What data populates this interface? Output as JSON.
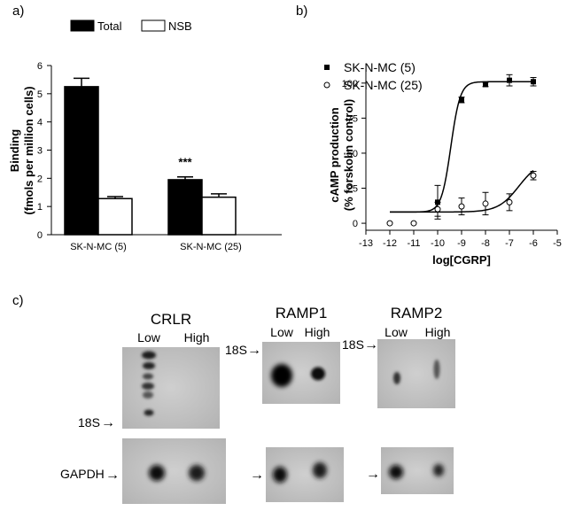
{
  "panel_labels": {
    "a": "a)",
    "b": "b)",
    "c": "c)"
  },
  "chart_data": [
    {
      "type": "bar",
      "panel": "a",
      "categories": [
        "SK-N-MC (5)",
        "SK-N-MC (25)"
      ],
      "series": [
        {
          "name": "Total",
          "values": [
            5.25,
            1.95
          ],
          "errors": [
            0.3,
            0.1
          ],
          "color": "#000000"
        },
        {
          "name": "NSB",
          "values": [
            1.28,
            1.33
          ],
          "errors": [
            0.07,
            0.12
          ],
          "color": "#ffffff"
        }
      ],
      "ylabel_line1": "Binding",
      "ylabel_line2": "(fmols per million cells)",
      "ylim": [
        0,
        6
      ],
      "yticks": [
        0,
        1,
        2,
        3,
        4,
        5,
        6
      ],
      "annotation": {
        "text": "***",
        "category_index": 1
      },
      "legend_position": "top",
      "grid": false
    },
    {
      "type": "scatter",
      "panel": "b",
      "series": [
        {
          "name": "SK-N-MC (5)",
          "marker": "filled-square",
          "x": [
            -10,
            -9,
            -8,
            -7,
            -6
          ],
          "y": [
            15,
            88,
            99,
            102,
            101
          ],
          "errors": [
            12,
            2,
            1.5,
            4,
            3
          ],
          "fit": {
            "bottom": 8,
            "top": 101,
            "logEC50": -9.45,
            "hill": 2.2
          }
        },
        {
          "name": "SK-N-MC (25)",
          "marker": "open-circle",
          "x": [
            -12,
            -11,
            -10,
            -9,
            -8,
            -7,
            -6
          ],
          "y": [
            0,
            0,
            10,
            12,
            14,
            15,
            34
          ],
          "errors": [
            0,
            0,
            5,
            6,
            8,
            6,
            3
          ],
          "fit": {
            "bottom": 8,
            "top": 45,
            "logEC50": -6.6,
            "hill": 1.0
          }
        }
      ],
      "xlabel": "log[CGRP]",
      "ylabel_line1": "cAMP production",
      "ylabel_line2": "(% forskolin control)",
      "xlim": [
        -13,
        -5
      ],
      "ylim": [
        -5,
        110
      ],
      "xticks": [
        -13,
        -12,
        -11,
        -10,
        -9,
        -8,
        -7,
        -6,
        -5
      ],
      "yticks": [
        0,
        25,
        50,
        75,
        100
      ],
      "legend_position": "top-left",
      "grid": false
    }
  ],
  "blots": {
    "crlr": {
      "title": "CRLR",
      "col_low": "Low",
      "col_high": "High",
      "marker": "18S"
    },
    "ramp1": {
      "title": "RAMP1",
      "col_low": "Low",
      "col_high": "High",
      "marker": "18S"
    },
    "ramp2": {
      "title": "RAMP2",
      "col_low": "Low",
      "col_high": "High",
      "marker": "18S"
    },
    "gapdh": {
      "label": "GAPDH"
    },
    "arrow": "→"
  }
}
